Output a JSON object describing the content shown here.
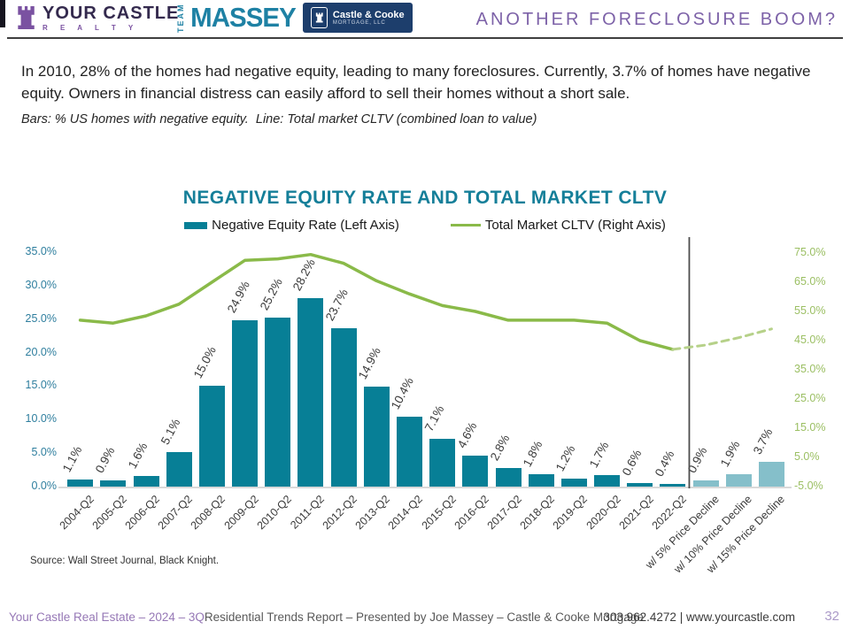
{
  "header": {
    "your_castle": {
      "name": "YOUR CASTLE",
      "sub": "R E A L T Y"
    },
    "massey": {
      "team": "TEAM",
      "name": "MASSEY",
      "badge_title": "Castle & Cooke",
      "badge_sub": "MORTGAGE, LLC"
    },
    "title": "ANOTHER FORECLOSURE BOOM?"
  },
  "intro": {
    "paragraph": "In 2010, 28% of the homes had negative equity, leading to many foreclosures. Currently, 3.7% of homes have negative equity. Owners in financial distress can easily afford to sell their homes without a short sale.",
    "subtitle": "Bars: % US homes with negative equity.  Line: Total market CLTV (combined loan to value)"
  },
  "chart_data": {
    "type": "bar+line",
    "title": "NEGATIVE EQUITY RATE AND TOTAL MARKET CLTV",
    "legend": [
      {
        "label": "Negative Equity Rate (Left Axis)",
        "marker": "bar",
        "color": "#077f96"
      },
      {
        "label": "Total Market CLTV (Right Axis)",
        "marker": "line",
        "color": "#8aba49"
      }
    ],
    "categories": [
      "2004-Q2",
      "2005-Q2",
      "2006-Q2",
      "2007-Q2",
      "2008-Q2",
      "2009-Q2",
      "2010-Q2",
      "2011-Q2",
      "2012-Q2",
      "2013-Q2",
      "2014-Q2",
      "2015-Q2",
      "2016-Q2",
      "2017-Q2",
      "2018-Q2",
      "2019-Q2",
      "2020-Q2",
      "2021-Q2",
      "2022-Q2",
      "w/ 5% Price Decline",
      "w/ 10% Price Decline",
      "w/ 15% Price Decline"
    ],
    "series": [
      {
        "name": "Negative Equity Rate (Left Axis)",
        "type": "bar",
        "axis": "left",
        "values": [
          1.1,
          0.9,
          1.6,
          5.1,
          15.0,
          24.9,
          25.2,
          28.2,
          23.7,
          14.9,
          10.4,
          7.1,
          4.6,
          2.8,
          1.8,
          1.2,
          1.7,
          0.6,
          0.4,
          0.9,
          1.9,
          3.7
        ],
        "labels": [
          "1.1%",
          "0.9%",
          "1.6%",
          "5.1%",
          "15.0%",
          "24.9%",
          "25.2%",
          "28.2%",
          "23.7%",
          "14.9%",
          "10.4%",
          "7.1%",
          "4.6%",
          "2.8%",
          "1.8%",
          "1.2%",
          "1.7%",
          "0.6%",
          "0.4%",
          "0.9%",
          "1.9%",
          "3.7%"
        ],
        "bar_color": "#077f96",
        "projection_bar_color": "#85bfca",
        "projection_from_index": 19
      },
      {
        "name": "Total Market CLTV (Right Axis)",
        "type": "line",
        "axis": "right",
        "values": [
          52,
          51,
          53.5,
          57.5,
          65,
          72.5,
          73,
          74.5,
          71.5,
          65.5,
          61,
          57,
          55,
          52,
          52,
          52,
          51,
          45,
          42,
          43.5,
          46,
          49
        ],
        "color": "#8aba49",
        "dashed_color": "#b6d189",
        "dashed_from_index": 18
      }
    ],
    "left_axis": {
      "ticks": [
        "35.0%",
        "30.0%",
        "25.0%",
        "20.0%",
        "15.0%",
        "10.0%",
        "5.0%",
        "0.0%"
      ],
      "min": 0,
      "max": 35,
      "color": "#2e7e9e"
    },
    "right_axis": {
      "ticks": [
        "75.0%",
        "65.0%",
        "55.0%",
        "45.0%",
        "35.0%",
        "25.0%",
        "15.0%",
        "5.0%",
        "-5.0%"
      ],
      "min": -5,
      "max": 75,
      "color": "#9bbf63"
    },
    "divider_after_category": "2022-Q2",
    "grid": false,
    "legend_position": "top",
    "source": "Source: Wall Street Journal, Black Knight."
  },
  "footer": {
    "left_highlight": "Your Castle Real Estate – 2024 – 3Q",
    "left_rest": " Residential Trends Report – Presented by Joe Massey – Castle & Cooke Mortgage",
    "contact": "303.962.4272 | www.yourcastle.com",
    "page": "32"
  }
}
